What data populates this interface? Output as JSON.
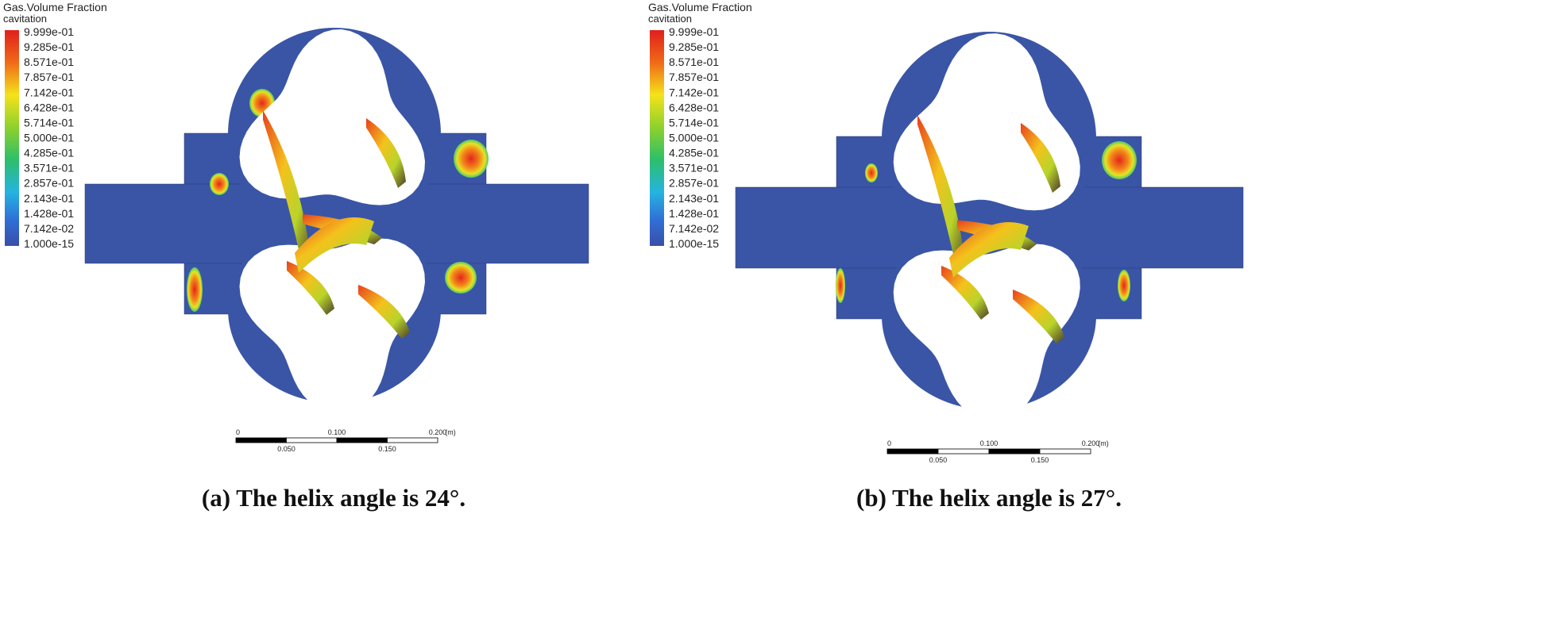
{
  "panels": [
    {
      "legend": {
        "title": "Gas.Volume Fraction",
        "subtitle": "cavitation",
        "labels": [
          "9.999e-01",
          "9.285e-01",
          "8.571e-01",
          "7.857e-01",
          "7.142e-01",
          "6.428e-01",
          "5.714e-01",
          "5.000e-01",
          "4.285e-01",
          "3.571e-01",
          "2.857e-01",
          "2.143e-01",
          "1.428e-01",
          "7.142e-02",
          "1.000e-15"
        ]
      },
      "scale_bar": {
        "top": [
          "0",
          "0.100",
          "0.200",
          "(m)"
        ],
        "bottom": [
          "0.050",
          "0.150"
        ]
      },
      "caption": "(a) The helix angle is 24°."
    },
    {
      "legend": {
        "title": "Gas.Volume Fraction",
        "subtitle": "cavitation",
        "labels": [
          "9.999e-01",
          "9.285e-01",
          "8.571e-01",
          "7.857e-01",
          "7.142e-01",
          "6.428e-01",
          "5.714e-01",
          "5.000e-01",
          "4.285e-01",
          "3.571e-01",
          "2.857e-01",
          "2.143e-01",
          "1.428e-01",
          "7.142e-02",
          "1.000e-15"
        ]
      },
      "scale_bar": {
        "top": [
          "0",
          "0.100",
          "0.200",
          "(m)"
        ],
        "bottom": [
          "0.050",
          "0.150"
        ]
      },
      "caption": "(b) The helix angle is 27°."
    }
  ]
}
